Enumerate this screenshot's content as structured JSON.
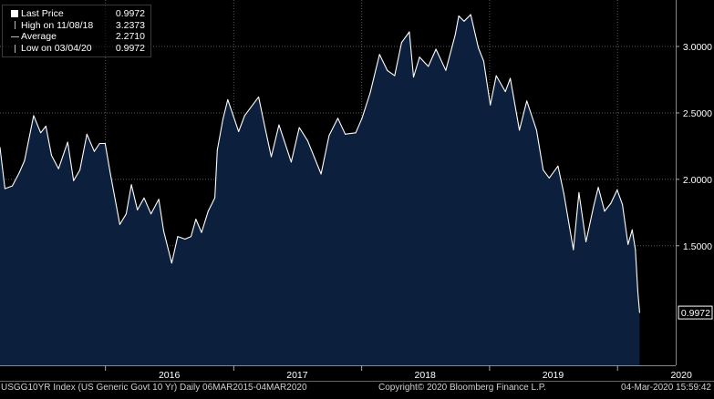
{
  "legend": {
    "items": [
      {
        "label": "Last Price",
        "value": "0.9972",
        "marker": "square"
      },
      {
        "label": "High on 11/08/18",
        "value": "3.2373",
        "marker": "tick"
      },
      {
        "label": "Average",
        "value": "2.2710",
        "marker": "dash"
      },
      {
        "label": "Low on 03/04/20",
        "value": "0.9972",
        "marker": "tick"
      }
    ]
  },
  "footer": {
    "left": "USGG10YR Index (US Generic Govt 10 Yr)  Daily 06MAR2015-04MAR2020",
    "center": "Copyright© 2020 Bloomberg Finance L.P.",
    "right": "04-Mar-2020  15:59:42"
  },
  "colors": {
    "background": "#000000",
    "area_fill": "#0c1f3d",
    "line": "#ffffff",
    "grid": "#5a5a5a",
    "axis_text": "#ffffff"
  },
  "chart_data": {
    "type": "area",
    "y_ticks": [
      "3.0000",
      "2.5000",
      "2.0000",
      "1.5000"
    ],
    "ylim": [
      0.6,
      3.35
    ],
    "x_tick_labels": [
      "2016",
      "2017",
      "2018",
      "2019",
      "2020"
    ],
    "xlim": [
      "2015-03-06",
      "2020-06-15"
    ],
    "last_value_label": "0.9972",
    "grid": true,
    "series": [
      {
        "values": [
          [
            "2015-03-06",
            2.24
          ],
          [
            "2015-03-20",
            1.93
          ],
          [
            "2015-04-10",
            1.95
          ],
          [
            "2015-04-30",
            2.05
          ],
          [
            "2015-05-15",
            2.14
          ],
          [
            "2015-06-10",
            2.48
          ],
          [
            "2015-06-30",
            2.35
          ],
          [
            "2015-07-15",
            2.4
          ],
          [
            "2015-07-31",
            2.18
          ],
          [
            "2015-08-20",
            2.08
          ],
          [
            "2015-09-15",
            2.28
          ],
          [
            "2015-10-02",
            1.99
          ],
          [
            "2015-10-20",
            2.07
          ],
          [
            "2015-11-09",
            2.34
          ],
          [
            "2015-11-30",
            2.21
          ],
          [
            "2015-12-15",
            2.27
          ],
          [
            "2015-12-31",
            2.27
          ],
          [
            "2016-01-15",
            2.04
          ],
          [
            "2016-02-11",
            1.66
          ],
          [
            "2016-02-29",
            1.74
          ],
          [
            "2016-03-15",
            1.96
          ],
          [
            "2016-04-01",
            1.77
          ],
          [
            "2016-04-20",
            1.86
          ],
          [
            "2016-05-10",
            1.74
          ],
          [
            "2016-06-01",
            1.85
          ],
          [
            "2016-06-15",
            1.61
          ],
          [
            "2016-07-08",
            1.37
          ],
          [
            "2016-07-25",
            1.57
          ],
          [
            "2016-08-15",
            1.55
          ],
          [
            "2016-09-01",
            1.57
          ],
          [
            "2016-09-15",
            1.7
          ],
          [
            "2016-10-01",
            1.6
          ],
          [
            "2016-10-20",
            1.76
          ],
          [
            "2016-11-08",
            1.86
          ],
          [
            "2016-11-15",
            2.22
          ],
          [
            "2016-12-01",
            2.45
          ],
          [
            "2016-12-15",
            2.6
          ],
          [
            "2017-01-15",
            2.36
          ],
          [
            "2017-02-01",
            2.48
          ],
          [
            "2017-03-13",
            2.62
          ],
          [
            "2017-03-31",
            2.39
          ],
          [
            "2017-04-18",
            2.17
          ],
          [
            "2017-05-10",
            2.41
          ],
          [
            "2017-06-14",
            2.13
          ],
          [
            "2017-07-07",
            2.39
          ],
          [
            "2017-07-31",
            2.29
          ],
          [
            "2017-09-07",
            2.04
          ],
          [
            "2017-09-30",
            2.33
          ],
          [
            "2017-10-25",
            2.46
          ],
          [
            "2017-11-15",
            2.34
          ],
          [
            "2017-12-15",
            2.35
          ],
          [
            "2018-01-02",
            2.46
          ],
          [
            "2018-01-25",
            2.65
          ],
          [
            "2018-02-21",
            2.94
          ],
          [
            "2018-03-15",
            2.82
          ],
          [
            "2018-04-05",
            2.78
          ],
          [
            "2018-04-25",
            3.03
          ],
          [
            "2018-05-17",
            3.11
          ],
          [
            "2018-05-29",
            2.77
          ],
          [
            "2018-06-15",
            2.92
          ],
          [
            "2018-07-10",
            2.85
          ],
          [
            "2018-08-01",
            2.98
          ],
          [
            "2018-08-29",
            2.82
          ],
          [
            "2018-09-25",
            3.09
          ],
          [
            "2018-10-05",
            3.23
          ],
          [
            "2018-10-20",
            3.19
          ],
          [
            "2018-11-08",
            3.24
          ],
          [
            "2018-11-30",
            2.99
          ],
          [
            "2018-12-15",
            2.89
          ],
          [
            "2019-01-03",
            2.56
          ],
          [
            "2019-01-20",
            2.78
          ],
          [
            "2019-02-15",
            2.66
          ],
          [
            "2019-03-01",
            2.76
          ],
          [
            "2019-03-27",
            2.37
          ],
          [
            "2019-04-17",
            2.59
          ],
          [
            "2019-05-15",
            2.37
          ],
          [
            "2019-06-03",
            2.07
          ],
          [
            "2019-06-20",
            2.01
          ],
          [
            "2019-07-15",
            2.1
          ],
          [
            "2019-08-01",
            1.89
          ],
          [
            "2019-08-28",
            1.47
          ],
          [
            "2019-09-13",
            1.9
          ],
          [
            "2019-10-03",
            1.53
          ],
          [
            "2019-10-25",
            1.8
          ],
          [
            "2019-11-07",
            1.94
          ],
          [
            "2019-11-25",
            1.76
          ],
          [
            "2019-12-13",
            1.82
          ],
          [
            "2019-12-31",
            1.92
          ],
          [
            "2020-01-15",
            1.81
          ],
          [
            "2020-01-31",
            1.51
          ],
          [
            "2020-02-12",
            1.62
          ],
          [
            "2020-02-21",
            1.47
          ],
          [
            "2020-02-28",
            1.15
          ],
          [
            "2020-03-04",
            0.9972
          ]
        ]
      }
    ]
  }
}
